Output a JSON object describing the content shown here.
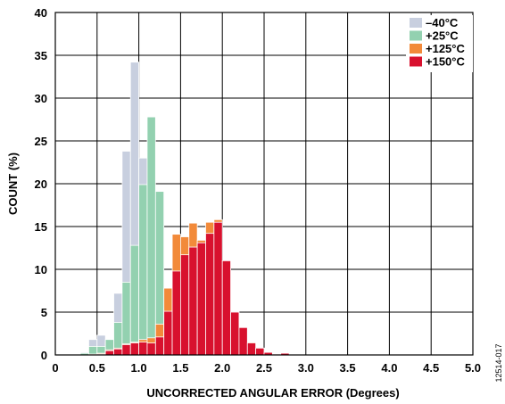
{
  "chart_data": {
    "type": "bar",
    "subtype": "overlapping-histogram",
    "xlabel": "UNCORRECTED ANGULAR ERROR (Degrees)",
    "ylabel": "COUNT (%)",
    "xlim": [
      0,
      5.0
    ],
    "ylim": [
      0,
      40
    ],
    "x_ticks": [
      "0",
      "0.5",
      "1.0",
      "1.5",
      "2.0",
      "2.5",
      "3.0",
      "3.5",
      "4.0",
      "4.5",
      "5.0"
    ],
    "y_ticks": [
      "0",
      "5",
      "10",
      "15",
      "20",
      "25",
      "30",
      "35",
      "40"
    ],
    "grid": true,
    "legend_position": "top-right",
    "bin_width": 0.1,
    "bin_starts": [
      0.3,
      0.4,
      0.5,
      0.6,
      0.7,
      0.8,
      0.9,
      1.0,
      1.1,
      1.2,
      1.3,
      1.4,
      1.5,
      1.6,
      1.7,
      1.8,
      1.9,
      2.0,
      2.1,
      2.2,
      2.3,
      2.4,
      2.5,
      2.6,
      2.7
    ],
    "series": [
      {
        "name": "–40°C",
        "color": "#c8cfdf",
        "values": [
          0.3,
          1.8,
          2.3,
          1.5,
          7.2,
          23.8,
          34.2,
          23.0,
          12.1,
          3.2,
          0.6,
          0,
          0,
          0,
          0,
          0,
          0,
          0,
          0,
          0,
          0,
          0,
          0,
          0,
          0
        ]
      },
      {
        "name": "+25°C",
        "color": "#93d1b0",
        "values": [
          0.2,
          1.0,
          1.0,
          1.8,
          3.8,
          8.5,
          12.8,
          19.9,
          27.8,
          19.1,
          5.5,
          0.7,
          0,
          0,
          0,
          0,
          0,
          0,
          0,
          0,
          0,
          0,
          0,
          0,
          0
        ]
      },
      {
        "name": "+125°C",
        "color": "#f28a3a",
        "values": [
          0,
          0.1,
          0.2,
          0.6,
          0.8,
          1.3,
          1.5,
          1.8,
          2.0,
          3.6,
          7.8,
          14.1,
          13.8,
          15.4,
          13.4,
          15.5,
          15.8,
          11.0,
          5.0,
          3.2,
          1.5,
          0.8,
          0.3,
          0.1,
          0
        ]
      },
      {
        "name": "+150°C",
        "color": "#d8112e",
        "values": [
          0,
          0,
          0.1,
          0.5,
          0.7,
          1.2,
          1.4,
          1.5,
          1.4,
          2.1,
          5.1,
          9.8,
          11.7,
          12.6,
          13.1,
          14.2,
          15.5,
          11.0,
          5.0,
          3.2,
          1.4,
          0.8,
          0.3,
          0.1,
          0.2
        ]
      }
    ]
  },
  "figure_code": "12514-017"
}
